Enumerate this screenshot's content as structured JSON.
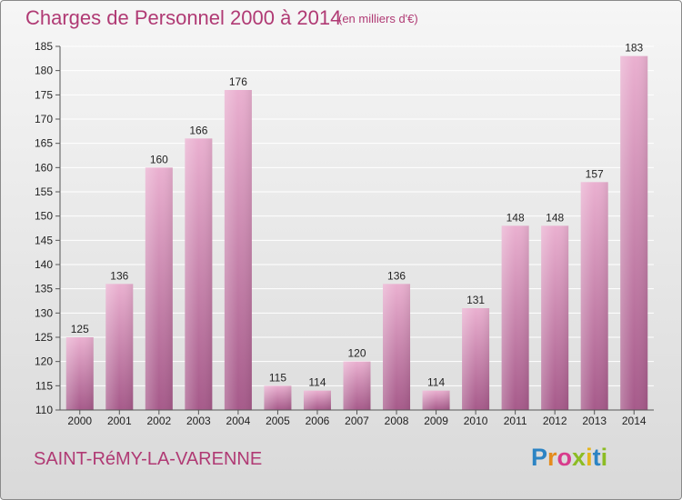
{
  "title": "Charges de Personnel 2000 à 2014",
  "subtitle": "(en milliers d'€)",
  "town": "SAINT-RéMY-LA-VARENNE",
  "logo": {
    "text": "Proxiti",
    "letters": [
      "P",
      "r",
      "o",
      "x",
      "i",
      "t",
      "i"
    ],
    "colors": [
      "#2c84c4",
      "#e48c1c",
      "#d83c8c",
      "#8cbc24",
      "#e4b41c",
      "#2c84c4",
      "#8cbc24"
    ]
  },
  "colors": {
    "title": "#b03a74",
    "bar_top": "#e8a8cc",
    "bar_bottom": "#a85c8c",
    "grid": "#ffffff",
    "axis_text": "#222222"
  },
  "chart_data": {
    "type": "bar",
    "categories": [
      "2000",
      "2001",
      "2002",
      "2003",
      "2004",
      "2005",
      "2006",
      "2007",
      "2008",
      "2009",
      "2010",
      "2011",
      "2012",
      "2013",
      "2014"
    ],
    "values": [
      125,
      136,
      160,
      166,
      176,
      115,
      114,
      120,
      136,
      114,
      131,
      148,
      148,
      157,
      183
    ],
    "ylim": [
      110,
      185
    ],
    "yticks": [
      110,
      115,
      120,
      125,
      130,
      135,
      140,
      145,
      150,
      155,
      160,
      165,
      170,
      175,
      180,
      185
    ],
    "grid": true,
    "data_labels": true
  }
}
